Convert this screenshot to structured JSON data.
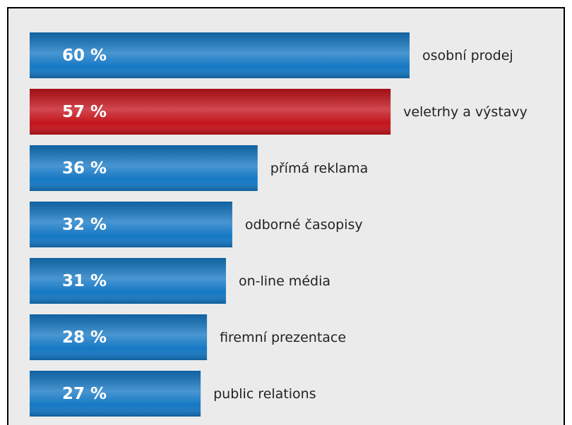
{
  "chart_data": {
    "type": "barh",
    "categories": [
      "osobní prodej",
      "veletrhy a výstavy",
      "přímá reklama",
      "odborné časopisy",
      "on-line média",
      "firemní prezentace",
      "public relations"
    ],
    "values": [
      60,
      57,
      36,
      32,
      31,
      28,
      27
    ],
    "value_labels": [
      "60 %",
      "57 %",
      "36 %",
      "32 %",
      "31 %",
      "28 %",
      "27 %"
    ],
    "colors": [
      "#1578c4",
      "#c4141c",
      "#1578c4",
      "#1578c4",
      "#1578c4",
      "#1578c4",
      "#1578c4"
    ],
    "xlim": [
      0,
      60
    ]
  }
}
